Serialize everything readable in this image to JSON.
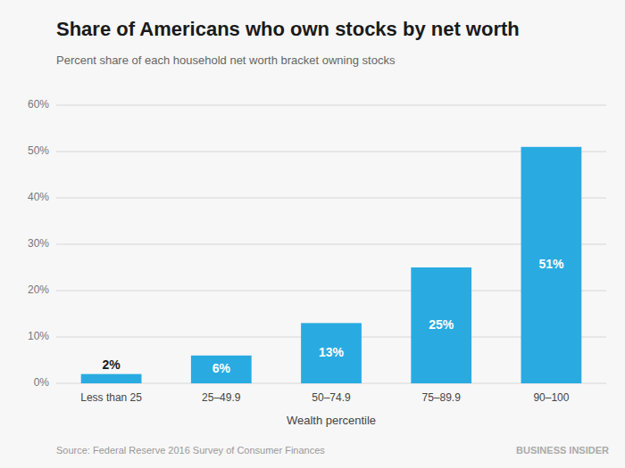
{
  "chart_data": {
    "type": "bar",
    "title": "Share of Americans who own stocks by net worth",
    "subtitle": "Percent share of each household net worth bracket owning stocks",
    "x_label": "Wealth percentile",
    "annotations": [
      "Source: Federal Reserve 2016 Survey of Consumer Finances",
      "BUSINESS INSIDER"
    ],
    "categories": [
      "Less than 25",
      "25–49.9",
      "50–74.9",
      "75–89.9",
      "90–100"
    ],
    "values": [
      2,
      6,
      13,
      25,
      51
    ],
    "value_labels": [
      "2%",
      "6%",
      "13%",
      "25%",
      "51%"
    ],
    "data_labels": true,
    "color": "#29abe2",
    "ylim": [
      0,
      60
    ],
    "yticks": [
      {
        "value": 0,
        "label": "0%"
      },
      {
        "value": 10,
        "label": "10%"
      },
      {
        "value": 20,
        "label": "20%"
      },
      {
        "value": 30,
        "label": "30%"
      },
      {
        "value": 40,
        "label": "40%"
      },
      {
        "value": 50,
        "label": "50%"
      },
      {
        "value": 60,
        "label": "60%"
      }
    ],
    "grid": true
  }
}
